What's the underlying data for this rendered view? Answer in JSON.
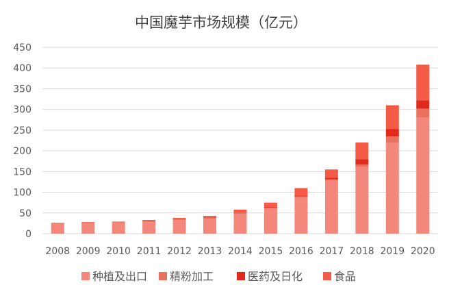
{
  "chart_data": {
    "type": "bar",
    "stacked": true,
    "title": "中国魔芋市场规模（亿元）",
    "categories": [
      "2008",
      "2009",
      "2010",
      "2011",
      "2012",
      "2013",
      "2014",
      "2015",
      "2016",
      "2017",
      "2018",
      "2019",
      "2020"
    ],
    "series": [
      {
        "name": "种植及出口",
        "color": "#F4877B",
        "values": [
          24,
          25,
          26,
          28,
          33,
          36,
          48,
          60,
          87,
          128,
          161,
          220,
          280
        ]
      },
      {
        "name": "精粉加工",
        "color": "#E9715F",
        "values": [
          1,
          2,
          2,
          2,
          2,
          3,
          3,
          3,
          3,
          3,
          6,
          15,
          22
        ]
      },
      {
        "name": "医药及日化",
        "color": "#E0281B",
        "values": [
          0,
          0,
          0,
          1,
          1,
          1,
          1,
          2,
          2,
          4,
          13,
          18,
          20
        ]
      },
      {
        "name": "食品",
        "color": "#F45A45",
        "values": [
          1,
          1,
          1,
          2,
          2,
          3,
          6,
          10,
          18,
          20,
          40,
          57,
          86
        ]
      }
    ],
    "ylim": [
      0,
      450
    ],
    "yticks": [
      0,
      50,
      100,
      150,
      200,
      250,
      300,
      350,
      400,
      450
    ],
    "grid": true,
    "legend_position": "bottom"
  }
}
